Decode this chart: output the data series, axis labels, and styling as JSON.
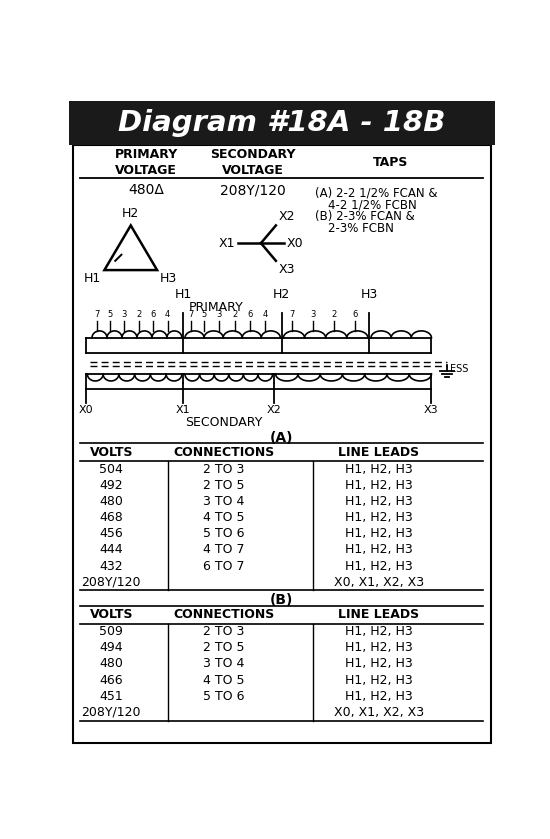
{
  "title": "Diagram #18A - 18B",
  "title_bg": "#1a1a1a",
  "title_color": "#ffffff",
  "primary_voltage": "480Δ",
  "secondary_voltage": "208Y/120",
  "taps_lines": [
    "(A) 2-2 1/2% FCAN &",
    "4-2 1/2% FCBN",
    "(B) 2-3% FCAN &",
    "2-3% FCBN"
  ],
  "table_A_header": "(A)",
  "table_A_cols": [
    "VOLTS",
    "CONNECTIONS",
    "LINE LEADS"
  ],
  "table_A_rows": [
    [
      "504",
      "2 TO 3",
      "H1, H2, H3"
    ],
    [
      "492",
      "2 TO 5",
      "H1, H2, H3"
    ],
    [
      "480",
      "3 TO 4",
      "H1, H2, H3"
    ],
    [
      "468",
      "4 TO 5",
      "H1, H2, H3"
    ],
    [
      "456",
      "5 TO 6",
      "H1, H2, H3"
    ],
    [
      "444",
      "4 TO 7",
      "H1, H2, H3"
    ],
    [
      "432",
      "6 TO 7",
      "H1, H2, H3"
    ],
    [
      "208Y/120",
      "",
      "X0, X1, X2, X3"
    ]
  ],
  "table_B_header": "(B)",
  "table_B_cols": [
    "VOLTS",
    "CONNECTIONS",
    "LINE LEADS"
  ],
  "table_B_rows": [
    [
      "509",
      "2 TO 3",
      "H1, H2, H3"
    ],
    [
      "494",
      "2 TO 5",
      "H1, H2, H3"
    ],
    [
      "480",
      "3 TO 4",
      "H1, H2, H3"
    ],
    [
      "466",
      "4 TO 5",
      "H1, H2, H3"
    ],
    [
      "451",
      "5 TO 6",
      "H1, H2, H3"
    ],
    [
      "208Y/120",
      "",
      "X0, X1, X2, X3"
    ]
  ],
  "bg_color": "#ffffff",
  "border_color": "#000000",
  "text_color": "#000000"
}
